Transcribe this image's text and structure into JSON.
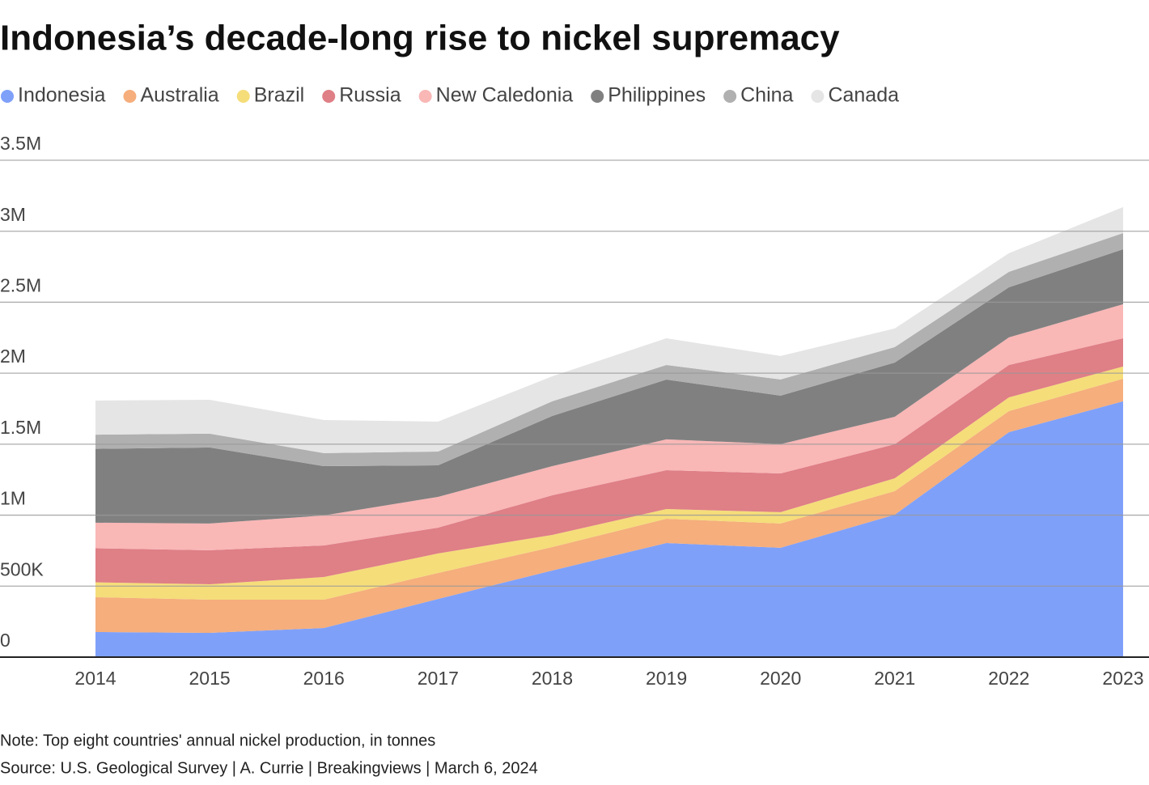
{
  "chart_data": {
    "type": "stacked-area",
    "title": "Indonesia’s decade-long rise to nickel supremacy",
    "note": "Note: Top eight countries' annual nickel production, in tonnes",
    "source": "Source: U.S. Geological Survey | A. Currie | Breakingviews | March 6, 2024",
    "categories": [
      "2014",
      "2015",
      "2016",
      "2017",
      "2018",
      "2019",
      "2020",
      "2021",
      "2022",
      "2023"
    ],
    "ylim": [
      0,
      3500000
    ],
    "yticks": [
      0,
      {
        "value": 500000,
        "label": "500K"
      },
      {
        "value": 1000000,
        "label": "1M"
      },
      {
        "value": 1500000,
        "label": "1.5M"
      },
      {
        "value": 2000000,
        "label": "2M"
      },
      {
        "value": 2500000,
        "label": "2.5M"
      },
      {
        "value": 3000000,
        "label": "3M"
      },
      {
        "value": 3500000,
        "label": "3.5M"
      }
    ],
    "grid": true,
    "legend": "top",
    "series": [
      {
        "name": "Indonesia",
        "color": "#7fa0f9",
        "values": [
          177000,
          171000,
          205000,
          410000,
          610000,
          804000,
          770000,
          1003000,
          1585000,
          1802000
        ]
      },
      {
        "name": "Australia",
        "color": "#f5ae7c",
        "values": [
          245000,
          234000,
          200000,
          183000,
          165000,
          171000,
          171000,
          166000,
          148000,
          159000
        ]
      },
      {
        "name": "Brazil",
        "color": "#f5dd7a",
        "values": [
          105000,
          108000,
          159000,
          137000,
          86000,
          68000,
          80000,
          91000,
          97000,
          86000
        ]
      },
      {
        "name": "Russia",
        "color": "#df7f86",
        "values": [
          240000,
          240000,
          223000,
          182000,
          279000,
          274000,
          273000,
          240000,
          228000,
          199000
        ]
      },
      {
        "name": "New Caledonia",
        "color": "#f9b7b6",
        "values": [
          180000,
          188000,
          211000,
          217000,
          205000,
          217000,
          206000,
          193000,
          194000,
          240000
        ]
      },
      {
        "name": "Philippines",
        "color": "#808080",
        "values": [
          520000,
          536000,
          347000,
          222000,
          354000,
          421000,
          342000,
          382000,
          353000,
          387000
        ]
      },
      {
        "name": "China",
        "color": "#b0b0b0",
        "values": [
          100000,
          97000,
          92000,
          97000,
          103000,
          103000,
          114000,
          109000,
          109000,
          114000
        ]
      },
      {
        "name": "Canada",
        "color": "#e5e5e5",
        "values": [
          240000,
          239000,
          233000,
          211000,
          176000,
          188000,
          165000,
          131000,
          131000,
          183000
        ]
      }
    ]
  }
}
